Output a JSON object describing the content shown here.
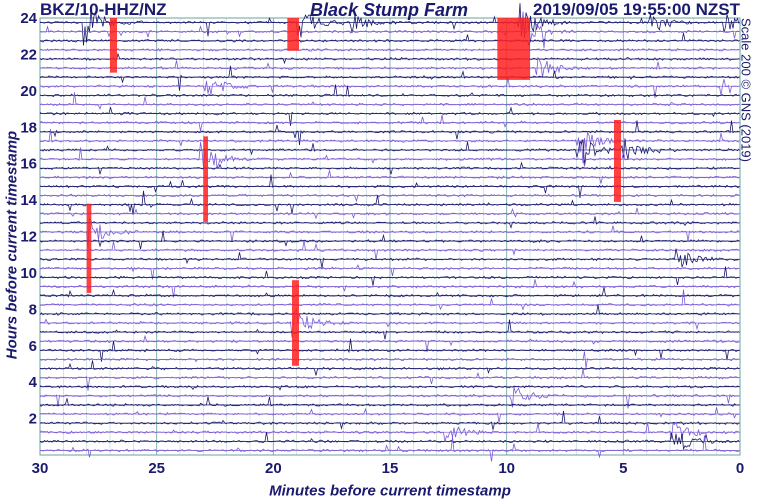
{
  "header": {
    "station": "BKZ/10-HHZ/NZ",
    "site": "Black Stump Farm",
    "timestamp": "2019/09/05 19:55:00 NZST"
  },
  "credit": "Scale 200 © GNS (2019)",
  "colors": {
    "trace_dark": "#1a1a6e",
    "trace_light": "#7b5cd6",
    "event_marker": "#ff2020",
    "grid": "#6aa3a0",
    "axis_text": "#1a1a6e"
  },
  "chart_data": {
    "type": "helicorder",
    "xlabel": "Minutes before current timestamp",
    "ylabel": "Hours before current timestamp",
    "xlim": [
      30,
      0
    ],
    "ylim": [
      0,
      24
    ],
    "x_ticks": [
      30,
      25,
      20,
      15,
      10,
      5,
      0
    ],
    "x_tick_labels": [
      "30",
      "25",
      "20",
      "15",
      "10",
      "5",
      "0"
    ],
    "y_ticks": [
      2,
      4,
      6,
      8,
      10,
      12,
      14,
      16,
      18,
      20,
      22,
      24
    ],
    "y_tick_labels": [
      "2",
      "4",
      "6",
      "8",
      "10",
      "12",
      "14",
      "16",
      "18",
      "20",
      "22",
      "24"
    ],
    "lines_per_hour": 2,
    "trace_count": 48,
    "grid": true,
    "events": [
      {
        "hour_start": 24.0,
        "hour_end": 20.6,
        "minute_start": 10.4,
        "minute_end": 9.0
      },
      {
        "hour_start": 24.0,
        "hour_end": 22.2,
        "minute_start": 19.4,
        "minute_end": 18.9
      },
      {
        "hour_start": 24.0,
        "hour_end": 21.0,
        "minute_start": 27.0,
        "minute_end": 26.7
      },
      {
        "hour_start": 18.4,
        "hour_end": 13.9,
        "minute_start": 5.4,
        "minute_end": 5.1
      },
      {
        "hour_start": 17.5,
        "hour_end": 12.8,
        "minute_start": 23.0,
        "minute_end": 22.8
      },
      {
        "hour_start": 13.8,
        "hour_end": 8.9,
        "minute_start": 28.0,
        "minute_end": 27.8
      },
      {
        "hour_start": 9.6,
        "hour_end": 4.9,
        "minute_start": 19.2,
        "minute_end": 18.9
      }
    ],
    "bursts": [
      {
        "hour": 23.9,
        "minute": 9.4,
        "amplitude": 1.6
      },
      {
        "hour": 23.4,
        "minute": 9.2,
        "amplitude": 1.3
      },
      {
        "hour": 23.9,
        "minute": 28.0,
        "amplitude": 1.5
      },
      {
        "hour": 23.9,
        "minute": 18.8,
        "amplitude": 1.1
      },
      {
        "hour": 23.9,
        "minute": 16.6,
        "amplitude": 0.8
      },
      {
        "hour": 23.9,
        "minute": 3.8,
        "amplitude": 0.9
      },
      {
        "hour": 23.9,
        "minute": 0.6,
        "amplitude": 0.7
      },
      {
        "hour": 21.3,
        "minute": 8.6,
        "amplitude": 0.9
      },
      {
        "hour": 20.1,
        "minute": 22.8,
        "amplitude": 0.9
      },
      {
        "hour": 17.0,
        "minute": 6.9,
        "amplitude": 1.2
      },
      {
        "hour": 16.8,
        "minute": 5.0,
        "amplitude": 1.0
      },
      {
        "hour": 16.1,
        "minute": 23.0,
        "amplitude": 1.1
      },
      {
        "hour": 12.3,
        "minute": 27.8,
        "amplitude": 1.0
      },
      {
        "hour": 10.6,
        "minute": 2.7,
        "amplitude": 1.0
      },
      {
        "hour": 7.4,
        "minute": 19.1,
        "amplitude": 1.2
      },
      {
        "hour": 3.4,
        "minute": 9.7,
        "amplitude": 0.8
      },
      {
        "hour": 1.0,
        "minute": 2.8,
        "amplitude": 1.0
      },
      {
        "hour": 1.1,
        "minute": 12.5,
        "amplitude": 0.7
      }
    ]
  }
}
